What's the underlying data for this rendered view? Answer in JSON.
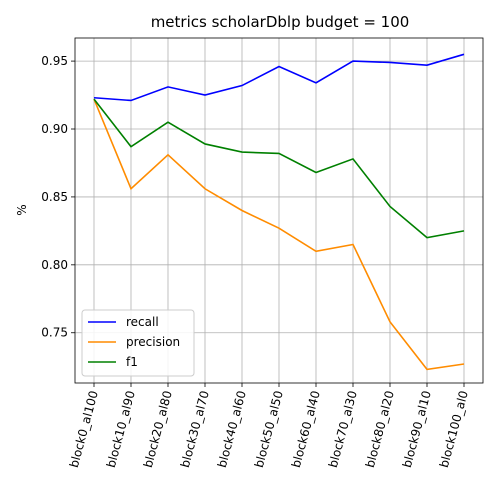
{
  "chart_data": {
    "type": "line",
    "title": "metrics scholarDblp budget = 100",
    "xlabel": "",
    "ylabel": "%",
    "categories": [
      "block0_al100",
      "block10_al90",
      "block20_al80",
      "block30_al70",
      "block40_al60",
      "block50_al50",
      "block60_al40",
      "block70_al30",
      "block80_al20",
      "block90_al10",
      "block100_al0"
    ],
    "ylim": [
      0.713,
      0.967
    ],
    "yticks": [
      0.75,
      0.8,
      0.85,
      0.9,
      0.95
    ],
    "ytick_labels": [
      "0.75",
      "0.80",
      "0.85",
      "0.90",
      "0.95"
    ],
    "grid": true,
    "legend": "lower-left",
    "series": [
      {
        "name": "recall",
        "color": "#0000ff",
        "values": [
          0.923,
          0.921,
          0.931,
          0.925,
          0.932,
          0.946,
          0.934,
          0.95,
          0.949,
          0.947,
          0.955
        ]
      },
      {
        "name": "precision",
        "color": "#ff8c00",
        "values": [
          0.922,
          0.856,
          0.881,
          0.856,
          0.84,
          0.827,
          0.81,
          0.815,
          0.758,
          0.723,
          0.727
        ]
      },
      {
        "name": "f1",
        "color": "#008000",
        "values": [
          0.922,
          0.887,
          0.905,
          0.889,
          0.883,
          0.882,
          0.868,
          0.878,
          0.843,
          0.82,
          0.825
        ]
      }
    ]
  }
}
